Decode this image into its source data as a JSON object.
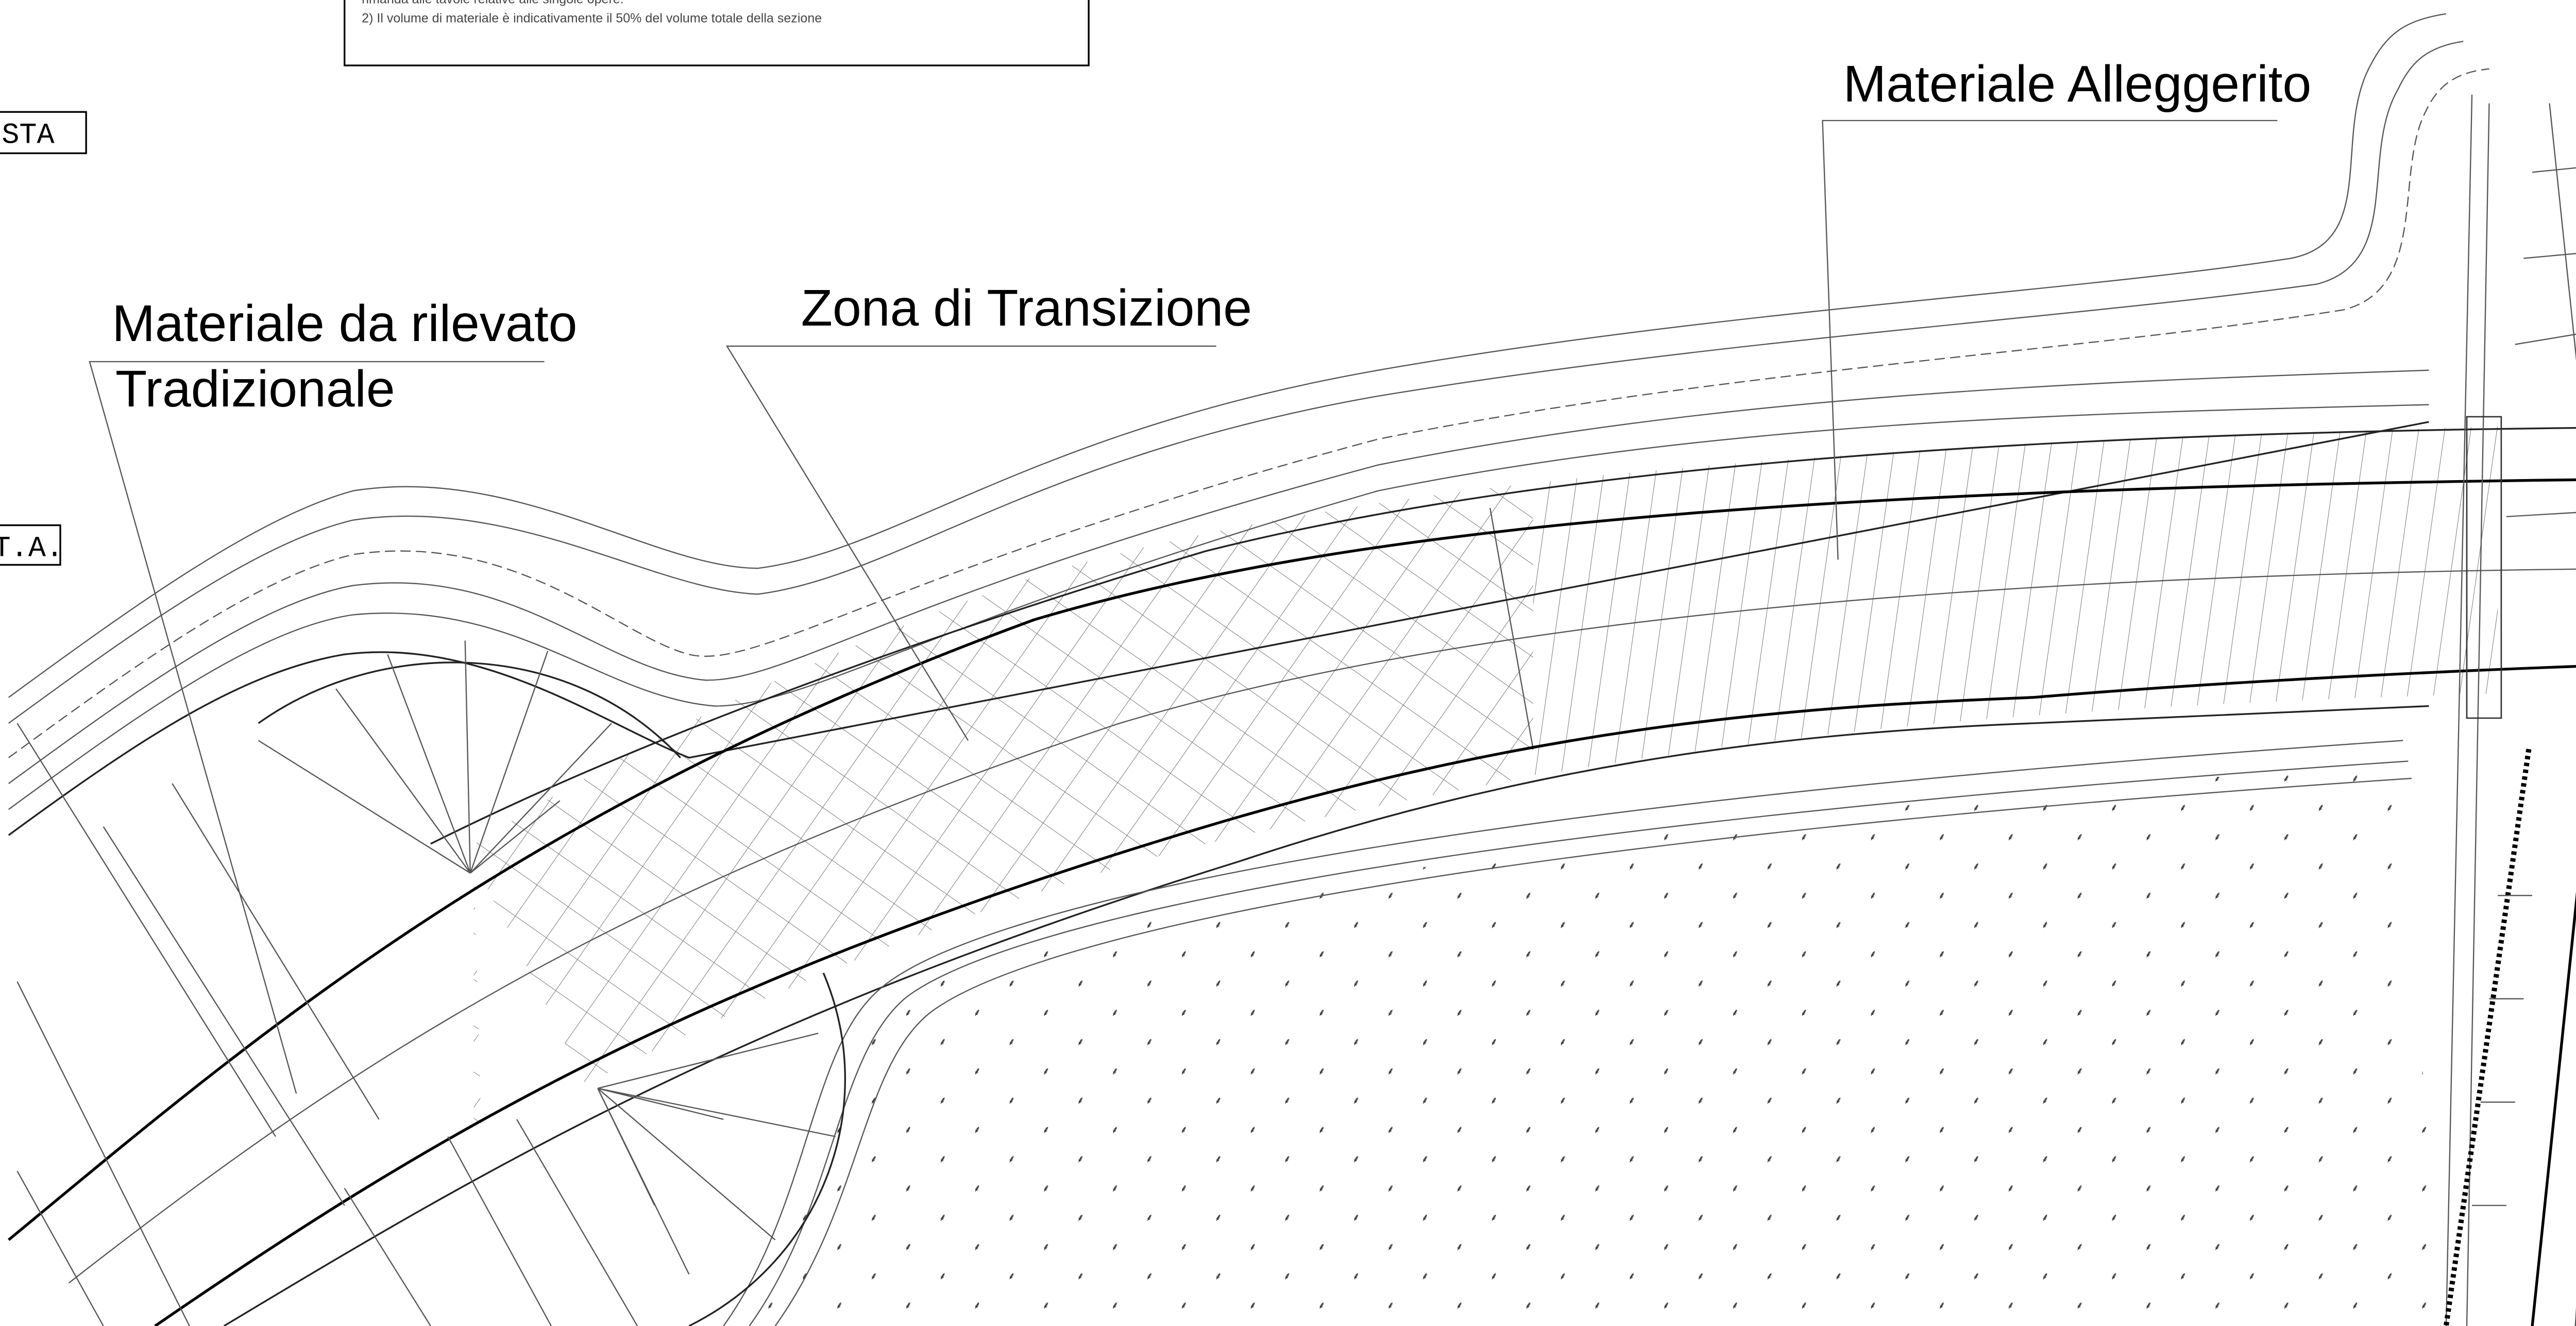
{
  "notes": {
    "lines": [
      "rimanda alle tavole relative alle singole opere.",
      "2) Il volume di materiale è indicativamente il 50% del volume totale della sezione"
    ]
  },
  "side_tags": [
    "STA",
    "T.A."
  ],
  "labels": {
    "traditional": [
      "Materiale da rilevato",
      "Tradizionale"
    ],
    "transition": "Zona di Transizione",
    "lightened": "Materiale Alleggerito"
  }
}
